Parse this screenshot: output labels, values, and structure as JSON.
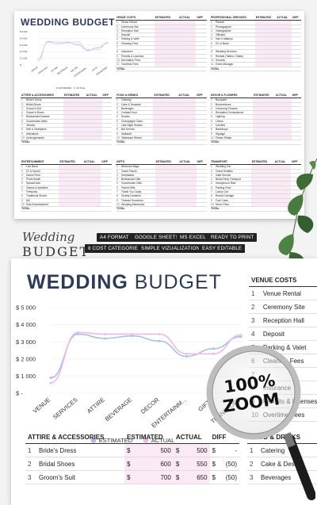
{
  "mini": {
    "title": "WEDDING BUDGET",
    "chart": {
      "yticks": [
        "$ 5 000",
        "$ 4 000",
        "$ 3 000",
        "$ 2 000",
        "$ 1 000",
        "$ -"
      ],
      "categories": [
        "VENUE",
        "SERVICES",
        "ATTIRE",
        "BEVERAGE",
        "DECOR",
        "ENTERTAINM...",
        "GIFTS",
        "TRANSPORT"
      ],
      "legend": [
        "ESTIMATED",
        "ACTUAL"
      ]
    },
    "headers": [
      "",
      "ESTIMATED",
      "ACTUAL",
      "DIFF"
    ],
    "sections": [
      {
        "title": "VENUE COSTS",
        "rows": [
          "Venue Rental",
          "Ceremony Site",
          "Reception Hall",
          "Deposit",
          "Parking & Valet",
          "Cleaning Fees",
          "",
          "Insurance",
          "Permits & Licenses",
          "Decoration Fees",
          "Overtime Fees"
        ]
      },
      {
        "title": "PROFESSIONAL SERVICES",
        "rows": [
          "Planner",
          "Photographer",
          "Videographer",
          "Officiant",
          "Hair & Makeup",
          "DJ or Band",
          "",
          "Wedding Services",
          "Rentals (Tables, Chairs)",
          "Security",
          "Event Manager"
        ]
      },
      {
        "title": "ATTIRE & ACCESSORIES",
        "rows": [
          "Bride's Dress",
          "Bridal Shoes",
          "Groom's Suit",
          "Groom's Shoes",
          "Bridesmaid Dresses",
          "Groomsmen Attire",
          "Jewelry",
          "Hair & Headpiece",
          "Alterations",
          "Undergarments"
        ]
      },
      {
        "title": "FOOD & DRINKS",
        "rows": [
          "Catering",
          "Cake & Desserts",
          "Beverages",
          "Cocktail Hour",
          "Snacks",
          "Champagne Toast",
          "Late Night Snacks",
          "Bar Service",
          "Waitstaff",
          "Tableware Rental"
        ]
      },
      {
        "title": "DECOR & FLOWERS",
        "rows": [
          "Bouquets",
          "Boutonnieres",
          "Ceremony Flowers",
          "Reception Centerpieces",
          "Lighting",
          "Linens",
          "Candles",
          "Backdrops",
          "Signage",
          "Flower Petals"
        ]
      },
      {
        "title": "ENTERTAINMENT",
        "rows": [
          "Live Band",
          "DJ & Sound",
          "Dance Floor",
          "Photo Booth",
          "Special Acts",
          "Games & Activities",
          "Fireworks",
          "Traditional Shows",
          "MC",
          "Kids Entertainment"
        ]
      },
      {
        "title": "GIFTS",
        "rows": [
          "Welcome Bags",
          "Guest Favors",
          "Keepsakes",
          "Bridesmaid Gifts",
          "Groomsmen Gifts",
          "Parent Gifts",
          "Thank You Cards",
          "Charity Donation",
          "Themed Souvenirs",
          "Wedding Mementos"
        ]
      },
      {
        "title": "TRANSPORT",
        "rows": [
          "Wedding Car",
          "Guest Shuttles",
          "Valet Service",
          "Bridal Party Transport",
          "Honeymoon Ride",
          "Parking Fees",
          "Luxury Car",
          "Rental Carriage",
          "Fuel Costs",
          "Driver Fees"
        ]
      }
    ],
    "total_label": "TOTAL"
  },
  "logo": {
    "line1": "Wedding",
    "line2": "BUDGET"
  },
  "tags": [
    "A4 FORMAT",
    "GOOGLE SHEETS",
    "MS EXCEL",
    "READY TO PRINT",
    "8 COST CATEGORIES",
    "SIMPLE VIZUALIZATION",
    "EASY EDITABLE"
  ],
  "big": {
    "title_bold": "WEDDING",
    "title_light": " BUDGET",
    "legend": [
      "ESTIMATED",
      "ACTUAL"
    ],
    "attire": {
      "title": "ATTIRE & ACCESSORIES",
      "col_estimated": "ESTIMATED",
      "col_actual": "ACTUAL",
      "col_diff": "DIFF",
      "rows": [
        {
          "n": "1",
          "item": "Bride's Dress",
          "cur1": "$",
          "est": "500",
          "cur2": "$",
          "act": "500",
          "cur3": "$",
          "diff": "-"
        },
        {
          "n": "2",
          "item": "Bridal Shoes",
          "cur1": "$",
          "est": "600",
          "cur2": "$",
          "act": "550",
          "cur3": "$",
          "diff": "(50)"
        },
        {
          "n": "3",
          "item": "Groom's Suit",
          "cur1": "$",
          "est": "700",
          "cur2": "$",
          "act": "650",
          "cur3": "$",
          "diff": "(50)"
        }
      ]
    },
    "venue": {
      "title": "VENUE COSTS",
      "rows": [
        {
          "n": "1",
          "item": "Venue Rental"
        },
        {
          "n": "2",
          "item": "Ceremony Site"
        },
        {
          "n": "3",
          "item": "Reception Hall"
        },
        {
          "n": "4",
          "item": "Deposit"
        },
        {
          "n": "5",
          "item": "Parking & Valet"
        },
        {
          "n": "6",
          "item": "Cleaning Fees"
        },
        {
          "n": "7",
          "item": ""
        },
        {
          "n": "8",
          "item": "Insurance"
        },
        {
          "n": "9",
          "item": "Permits & Licenses"
        },
        {
          "n": "10",
          "item": "Overtime Fees"
        }
      ]
    },
    "food": {
      "title": "FOOD & DRINKS",
      "rows": [
        {
          "n": "1",
          "item": "Catering"
        },
        {
          "n": "2",
          "item": "Cake & Desser"
        },
        {
          "n": "3",
          "item": "Beverages"
        }
      ]
    }
  },
  "zoom_badge": {
    "line1": "100%",
    "line2": "ZOOM"
  },
  "chart_data": {
    "type": "line",
    "categories": [
      "VENUE",
      "SERVICES",
      "ATTIRE",
      "BEVERAGE",
      "DECOR",
      "ENTERTAINM...",
      "GIFTS",
      "TRANSPORT"
    ],
    "series": [
      {
        "name": "ESTIMATED",
        "values": [
          900,
          3450,
          3200,
          3350,
          3050,
          2150,
          2600,
          3300
        ]
      },
      {
        "name": "ACTUAL",
        "values": [
          600,
          3550,
          3450,
          3450,
          3450,
          2300,
          2300,
          3400
        ]
      }
    ],
    "yticks": [
      "$ 5 000",
      "$ 4 000",
      "$ 3 000",
      "$ 2 000",
      "$ 1 000",
      "$ -"
    ],
    "ylim": [
      0,
      5000
    ],
    "legend_position": "bottom",
    "colors": {
      "ESTIMATED": "#a9bfe6",
      "ACTUAL": "#f0b9e2"
    }
  }
}
